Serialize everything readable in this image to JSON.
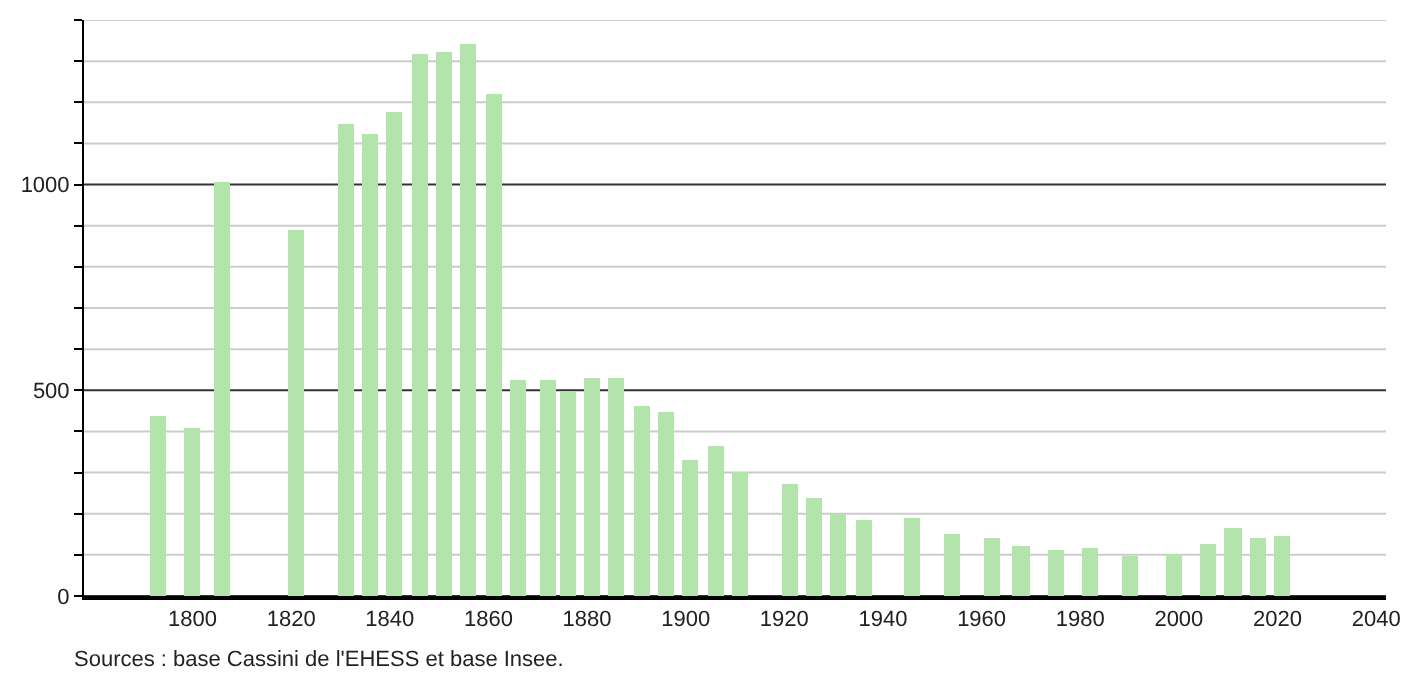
{
  "chart_data": {
    "type": "bar",
    "color": "#b2e4ac",
    "x": [
      1793,
      1800,
      1806,
      1821,
      1831,
      1836,
      1841,
      1846,
      1851,
      1856,
      1861,
      1866,
      1872,
      1876,
      1881,
      1886,
      1891,
      1896,
      1901,
      1906,
      1911,
      1921,
      1926,
      1931,
      1936,
      1946,
      1954,
      1962,
      1968,
      1975,
      1982,
      1990,
      1999,
      2006,
      2011,
      2016,
      2021
    ],
    "values": [
      437,
      408,
      1006,
      888,
      1149,
      1125,
      1178,
      1317,
      1324,
      1343,
      1222,
      526,
      523,
      497,
      531,
      528,
      461,
      445,
      332,
      364,
      299,
      272,
      238,
      198,
      184,
      189,
      150,
      141,
      121,
      110,
      117,
      95,
      100,
      126,
      165,
      141,
      146
    ],
    "xlim": [
      1778,
      2042
    ],
    "xticks": [
      1800,
      1820,
      1840,
      1860,
      1880,
      1900,
      1920,
      1940,
      1960,
      1980,
      2000,
      2020,
      2040
    ],
    "ylim": [
      0,
      1400
    ],
    "yticks": [
      0,
      {
        "value": 100,
        "label": null
      },
      {
        "value": 200,
        "label": null
      },
      {
        "value": 300,
        "label": null
      },
      {
        "value": 400,
        "label": null
      },
      500,
      {
        "value": 600,
        "label": null
      },
      {
        "value": 700,
        "label": null
      },
      {
        "value": 800,
        "label": null
      },
      {
        "value": 900,
        "label": null
      },
      1000,
      {
        "value": 1100,
        "label": null
      },
      {
        "value": 1200,
        "label": null
      },
      {
        "value": 1300,
        "label": null
      },
      {
        "value": 1400,
        "label": null
      }
    ],
    "grid": "y",
    "annotations": [
      "Sources : base Cassini de l'EHESS et base Insee."
    ]
  }
}
